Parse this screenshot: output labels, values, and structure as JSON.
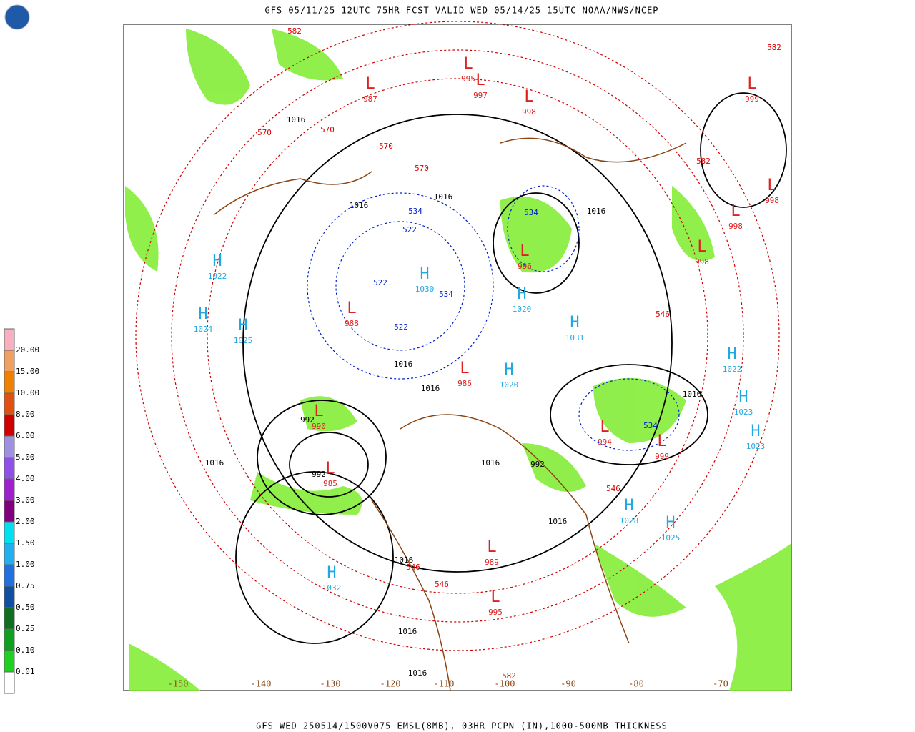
{
  "header": {
    "title": "GFS 05/11/25 12UTC 75HR FCST VALID WED 05/14/25 15UTC NOAA/NWS/NCEP"
  },
  "footer": {
    "caption": "GFS WED 250514/1500V075 EMSL(8MB), 03HR PCPN (IN),1000-500MB THICKNESS"
  },
  "legend": {
    "labels": [
      "20.00",
      "15.00",
      "10.00",
      "8.00",
      "6.00",
      "5.00",
      "4.00",
      "3.00",
      "2.00",
      "1.50",
      "1.00",
      "0.75",
      "0.50",
      "0.25",
      "0.10",
      "0.01"
    ],
    "colors": [
      "#f8b0c0",
      "#f0a060",
      "#f08000",
      "#e05010",
      "#d00000",
      "#a090e0",
      "#9050e8",
      "#a020d0",
      "#800080",
      "#00e0f0",
      "#20b0f0",
      "#2070e0",
      "#1050a0",
      "#107020",
      "#10a020",
      "#20d020",
      "#90f020",
      "#ffffff"
    ]
  },
  "longitudes": [
    "-150",
    "-140",
    "-130",
    "-120",
    "-110",
    "-100",
    "-90",
    "-80",
    "-70"
  ],
  "highs": [
    1022,
    1024,
    1025,
    1030,
    1020,
    1031,
    1022,
    1023,
    1023,
    1028,
    1025,
    1032,
    1020
  ],
  "lows": [
    988,
    990,
    985,
    986,
    994,
    999,
    996,
    998,
    998,
    999,
    995,
    997,
    998,
    995,
    989,
    998,
    987
  ],
  "isobar_labels": [
    1016,
    1016,
    1016,
    1016,
    1016,
    1016,
    1016,
    1016,
    1016,
    1016,
    992,
    992,
    992,
    1016,
    1016,
    1016
  ],
  "thickness_labels": [
    582,
    570,
    570,
    570,
    570,
    582,
    582,
    534,
    522,
    522,
    534,
    534,
    546,
    546,
    546,
    546,
    582,
    534,
    522
  ]
}
